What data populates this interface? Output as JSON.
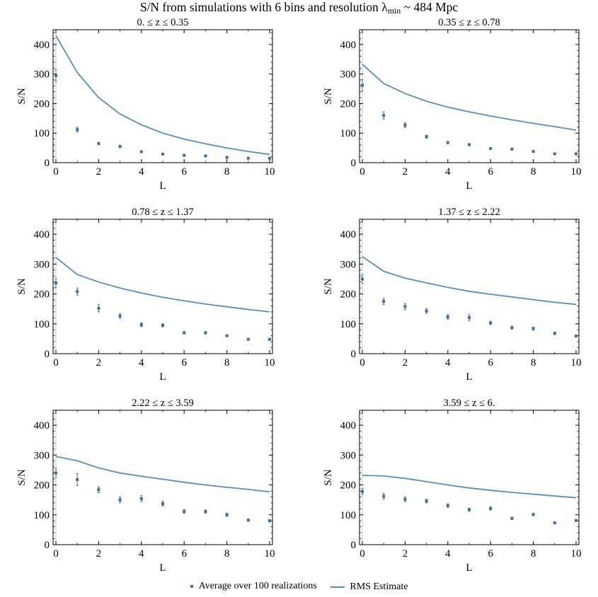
{
  "figure": {
    "title_main": "S/N from simulations with 6 bins and resolution λ",
    "title_sub": "min",
    "title_tail": " ~ 484 Mpc",
    "colors": {
      "points": "#3d6e9c",
      "line": "#5a8dbd",
      "axes": "#000000"
    }
  },
  "legend": {
    "points_label": "Average over 100 realizations",
    "line_label": "RMS Estimate"
  },
  "chart_data": [
    {
      "type": "scatter",
      "title": "0. ≤  z ≤ 0.35",
      "xlabel": "L",
      "ylabel": "S/N",
      "xlim": [
        0,
        10
      ],
      "ylim": [
        0,
        450
      ],
      "xticks": [
        0,
        2,
        4,
        6,
        8,
        10
      ],
      "yticks": [
        0,
        100,
        200,
        300,
        400
      ],
      "x": [
        0,
        1,
        2,
        3,
        4,
        5,
        6,
        7,
        8,
        9,
        10
      ],
      "series": [
        {
          "name": "Average over 100 realizations",
          "values": [
            295,
            112,
            65,
            55,
            37,
            29,
            25,
            23,
            18,
            15,
            15
          ],
          "errors": [
            20,
            8,
            4,
            4,
            3,
            2,
            2,
            2,
            2,
            2,
            2
          ]
        },
        {
          "name": "RMS Estimate",
          "values": [
            430,
            305,
            220,
            165,
            128,
            100,
            80,
            64,
            50,
            38,
            28
          ]
        }
      ]
    },
    {
      "type": "scatter",
      "title": "0.35 ≤  z ≤ 0.78",
      "xlabel": "L",
      "ylabel": "S/N",
      "xlim": [
        0,
        10
      ],
      "ylim": [
        0,
        450
      ],
      "xticks": [
        0,
        2,
        4,
        6,
        8,
        10
      ],
      "yticks": [
        0,
        100,
        200,
        300,
        400
      ],
      "x": [
        0,
        1,
        2,
        3,
        4,
        5,
        6,
        7,
        8,
        9,
        10
      ],
      "series": [
        {
          "name": "Average over 100 realizations",
          "values": [
            262,
            160,
            127,
            88,
            68,
            61,
            48,
            46,
            38,
            30,
            30
          ],
          "errors": [
            20,
            12,
            8,
            5,
            4,
            3,
            3,
            3,
            3,
            2,
            2
          ]
        },
        {
          "name": "RMS Estimate",
          "values": [
            333,
            268,
            234,
            208,
            188,
            172,
            158,
            145,
            133,
            122,
            110
          ]
        }
      ]
    },
    {
      "type": "scatter",
      "title": "0.78 ≤  z ≤ 1.37",
      "xlabel": "L",
      "ylabel": "S/N",
      "xlim": [
        0,
        10
      ],
      "ylim": [
        0,
        450
      ],
      "xticks": [
        0,
        2,
        4,
        6,
        8,
        10
      ],
      "yticks": [
        0,
        100,
        200,
        300,
        400
      ],
      "x": [
        0,
        1,
        2,
        3,
        4,
        5,
        6,
        7,
        8,
        9,
        10
      ],
      "series": [
        {
          "name": "Average over 100 realizations",
          "values": [
            237,
            208,
            152,
            126,
            97,
            95,
            70,
            70,
            60,
            48,
            48
          ],
          "errors": [
            15,
            12,
            12,
            8,
            6,
            5,
            4,
            4,
            3,
            3,
            3
          ]
        },
        {
          "name": "RMS Estimate",
          "values": [
            322,
            265,
            240,
            220,
            203,
            189,
            177,
            166,
            157,
            148,
            140
          ]
        }
      ]
    },
    {
      "type": "scatter",
      "title": "1.37 ≤  z ≤ 2.22",
      "xlabel": "L",
      "ylabel": "S/N",
      "xlim": [
        0,
        10
      ],
      "ylim": [
        0,
        450
      ],
      "xticks": [
        0,
        2,
        4,
        6,
        8,
        10
      ],
      "yticks": [
        0,
        100,
        200,
        300,
        400
      ],
      "x": [
        0,
        1,
        2,
        3,
        4,
        5,
        6,
        7,
        8,
        9,
        10
      ],
      "series": [
        {
          "name": "Average over 100 realizations",
          "values": [
            250,
            175,
            158,
            143,
            123,
            121,
            103,
            87,
            84,
            68,
            59
          ],
          "errors": [
            15,
            10,
            10,
            8,
            8,
            10,
            5,
            5,
            5,
            4,
            3
          ]
        },
        {
          "name": "RMS Estimate",
          "values": [
            325,
            276,
            253,
            237,
            222,
            209,
            199,
            190,
            181,
            172,
            165
          ]
        }
      ]
    },
    {
      "type": "scatter",
      "title": "2.22 ≤  z ≤ 3.59",
      "xlabel": "L",
      "ylabel": "S/N",
      "xlim": [
        0,
        10
      ],
      "ylim": [
        0,
        450
      ],
      "xticks": [
        0,
        2,
        4,
        6,
        8,
        10
      ],
      "yticks": [
        0,
        100,
        200,
        300,
        400
      ],
      "x": [
        0,
        1,
        2,
        3,
        4,
        5,
        6,
        7,
        8,
        9,
        10
      ],
      "series": [
        {
          "name": "Average over 100 realizations",
          "values": [
            240,
            218,
            184,
            150,
            154,
            137,
            111,
            111,
            100,
            82,
            80
          ],
          "errors": [
            15,
            20,
            10,
            10,
            10,
            8,
            6,
            5,
            5,
            4,
            4
          ]
        },
        {
          "name": "RMS Estimate",
          "values": [
            295,
            281,
            257,
            240,
            229,
            219,
            209,
            200,
            192,
            185,
            177
          ]
        }
      ]
    },
    {
      "type": "scatter",
      "title": "3.59 ≤  z ≤ 6.",
      "xlabel": "L",
      "ylabel": "S/N",
      "xlim": [
        0,
        10
      ],
      "ylim": [
        0,
        450
      ],
      "xticks": [
        0,
        2,
        4,
        6,
        8,
        10
      ],
      "yticks": [
        0,
        100,
        200,
        300,
        400
      ],
      "x": [
        0,
        1,
        2,
        3,
        4,
        5,
        6,
        7,
        8,
        9,
        10
      ],
      "series": [
        {
          "name": "Average over 100 realizations",
          "values": [
            178,
            162,
            152,
            146,
            131,
            117,
            121,
            88,
            101,
            73,
            81
          ],
          "errors": [
            10,
            10,
            8,
            6,
            6,
            5,
            5,
            4,
            4,
            3,
            3
          ]
        },
        {
          "name": "RMS Estimate",
          "values": [
            232,
            230,
            222,
            211,
            200,
            190,
            182,
            175,
            169,
            163,
            157
          ]
        }
      ]
    }
  ]
}
